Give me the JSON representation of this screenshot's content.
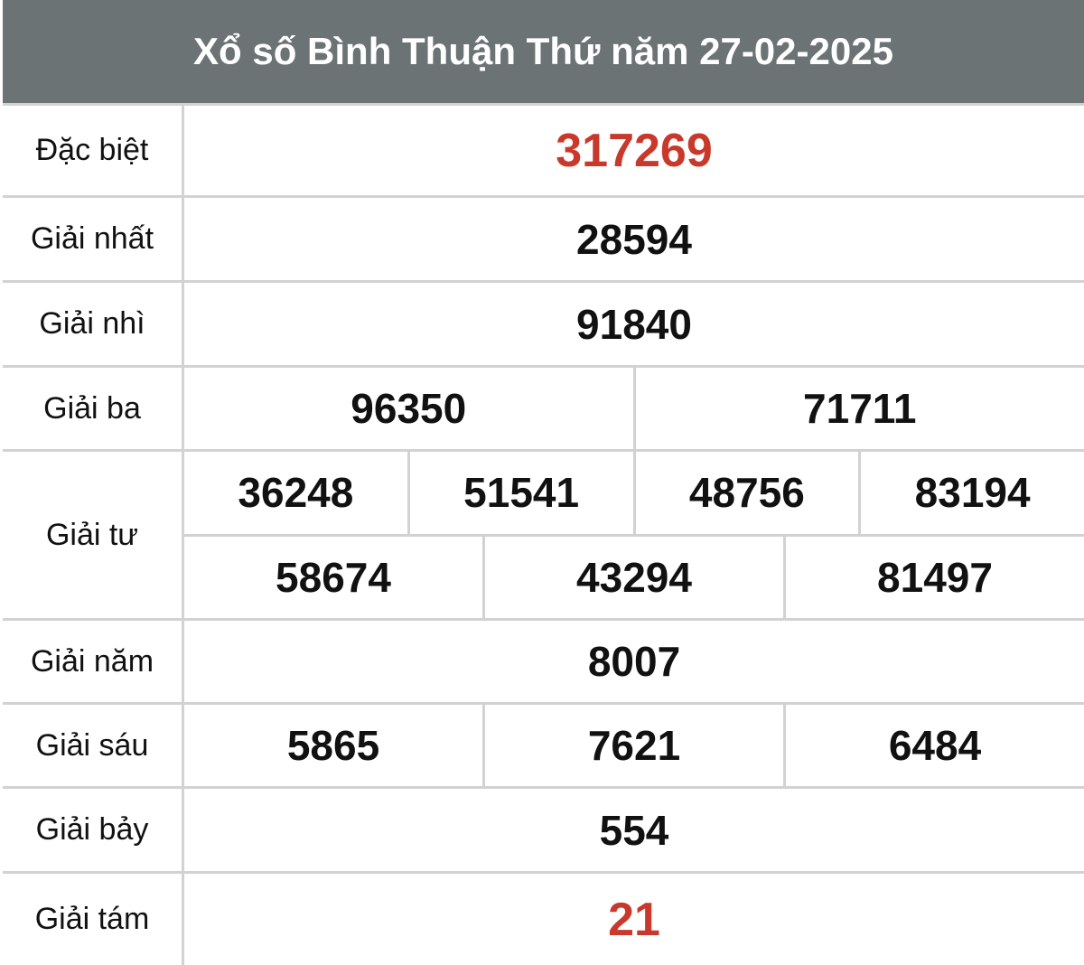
{
  "title": "Xổ số Bình Thuận Thứ năm 27-02-2025",
  "colors": {
    "header_bg": "#6c7375",
    "highlight": "#c8392b"
  },
  "prizes": [
    {
      "label": "Đặc biệt",
      "rows": [
        [
          "317269"
        ]
      ],
      "highlight": true
    },
    {
      "label": "Giải nhất",
      "rows": [
        [
          "28594"
        ]
      ]
    },
    {
      "label": "Giải nhì",
      "rows": [
        [
          "91840"
        ]
      ]
    },
    {
      "label": "Giải ba",
      "rows": [
        [
          "96350",
          "71711"
        ]
      ]
    },
    {
      "label": "Giải tư",
      "rows": [
        [
          "36248",
          "51541",
          "48756",
          "83194"
        ],
        [
          "58674",
          "43294",
          "81497"
        ]
      ]
    },
    {
      "label": "Giải năm",
      "rows": [
        [
          "8007"
        ]
      ]
    },
    {
      "label": "Giải sáu",
      "rows": [
        [
          "5865",
          "7621",
          "6484"
        ]
      ]
    },
    {
      "label": "Giải bảy",
      "rows": [
        [
          "554"
        ]
      ]
    },
    {
      "label": "Giải tám",
      "rows": [
        [
          "21"
        ]
      ],
      "highlight": true
    }
  ]
}
